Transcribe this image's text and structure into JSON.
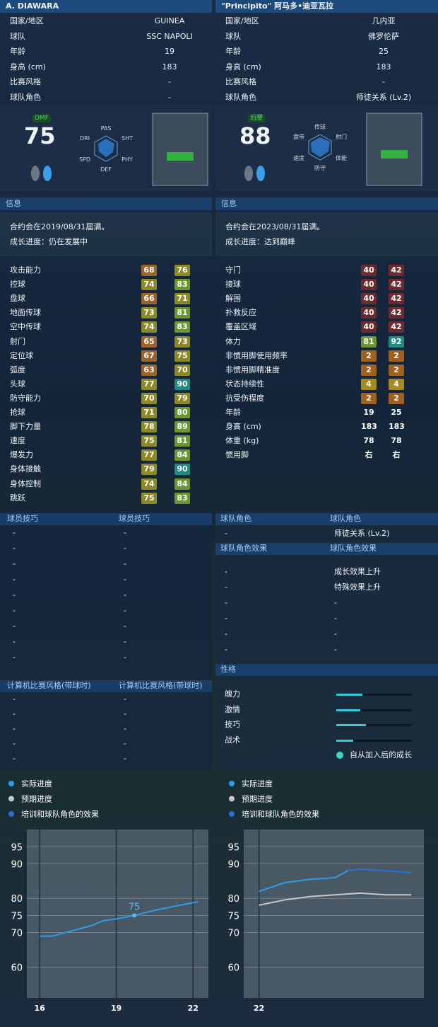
{
  "left": {
    "name": "A. DIAWARA",
    "profile": [
      {
        "label": "国家/地区",
        "value": "GUINEA"
      },
      {
        "label": "球队",
        "value": "SSC NAPOLI"
      },
      {
        "label": "年龄",
        "value": "19"
      },
      {
        "label": "身高 (cm)",
        "value": "183"
      },
      {
        "label": "比赛风格",
        "value": "-"
      },
      {
        "label": "球队角色",
        "value": "-"
      }
    ],
    "position": "DMF",
    "rating": 75,
    "radar_labels": [
      "PAS",
      "SHT",
      "PHY",
      "DEF",
      "SPD",
      "DRI"
    ],
    "info_title": "信息",
    "info": [
      "合约会在2019/08/31届满。",
      "成长进度：仍在发展中"
    ],
    "stats": [
      {
        "label": "攻击能力",
        "current": 68,
        "max": 76
      },
      {
        "label": "控球",
        "current": 74,
        "max": 83
      },
      {
        "label": "盘球",
        "current": 66,
        "max": 71
      },
      {
        "label": "地面传球",
        "current": 73,
        "max": 81
      },
      {
        "label": "空中传球",
        "current": 74,
        "max": 83
      },
      {
        "label": "射门",
        "current": 65,
        "max": 73
      },
      {
        "label": "定位球",
        "current": 67,
        "max": 75
      },
      {
        "label": "弧度",
        "current": 63,
        "max": 70
      },
      {
        "label": "头球",
        "current": 77,
        "max": 90
      },
      {
        "label": "防守能力",
        "current": 70,
        "max": 79
      },
      {
        "label": "抢球",
        "current": 71,
        "max": 80
      },
      {
        "label": "脚下力量",
        "current": 78,
        "max": 89
      },
      {
        "label": "速度",
        "current": 75,
        "max": 81
      },
      {
        "label": "爆发力",
        "current": 77,
        "max": 84
      },
      {
        "label": "身体接触",
        "current": 79,
        "max": 90
      },
      {
        "label": "身体控制",
        "current": 74,
        "max": 84
      },
      {
        "label": "跳跃",
        "current": 75,
        "max": 83
      }
    ]
  },
  "right": {
    "name": "\"Principito\" 阿马多•迪亚瓦拉",
    "profile": [
      {
        "label": "国家/地区",
        "value": "几内亚"
      },
      {
        "label": "球队",
        "value": "佛罗伦萨"
      },
      {
        "label": "年龄",
        "value": "25"
      },
      {
        "label": "身高 (cm)",
        "value": "183"
      },
      {
        "label": "比赛风格",
        "value": "-"
      },
      {
        "label": "球队角色",
        "value": "师徒关系 (Lv.2)"
      }
    ],
    "position": "后腰",
    "rating": 88,
    "radar_labels": [
      "传球",
      "射门",
      "体能",
      "防守",
      "速度",
      "盘带"
    ],
    "info_title": "信息",
    "info": [
      "合约会在2023/08/31届满。",
      "成长进度：达到巅峰"
    ],
    "stats": [
      {
        "label": "守门",
        "current": 40,
        "max": 42
      },
      {
        "label": "接球",
        "current": 40,
        "max": 42
      },
      {
        "label": "解围",
        "current": 40,
        "max": 42
      },
      {
        "label": "扑救反应",
        "current": 40,
        "max": 42
      },
      {
        "label": "覆盖区域",
        "current": 40,
        "max": 42
      },
      {
        "label": "体力",
        "current": 81,
        "max": 92
      },
      {
        "label": "非惯用脚使用频率",
        "current": 2,
        "max": 2
      },
      {
        "label": "非惯用脚精准度",
        "current": 2,
        "max": 2
      },
      {
        "label": "状态持续性",
        "current": 4,
        "max": 4
      },
      {
        "label": "抗受伤程度",
        "current": 2,
        "max": 2
      },
      {
        "label": "年龄",
        "current": 19,
        "max": 25
      },
      {
        "label": "身高 (cm)",
        "current": 183,
        "max": 183
      },
      {
        "label": "体重 (kg)",
        "current": 78,
        "max": 78
      },
      {
        "label": "惯用脚",
        "current": "右",
        "max": "右"
      }
    ]
  },
  "skills": {
    "headers": [
      "球员技巧",
      "球员技巧"
    ],
    "rows": [
      [
        "-",
        "-"
      ],
      [
        "-",
        "-"
      ],
      [
        "-",
        "-"
      ],
      [
        "-",
        "-"
      ],
      [
        "-",
        "-"
      ],
      [
        "-",
        "-"
      ],
      [
        "-",
        "-"
      ],
      [
        "-",
        "-"
      ],
      [
        "-",
        "-"
      ]
    ]
  },
  "ai_styles": {
    "headers": [
      "计算机比赛风格(带球时)",
      "计算机比赛风格(带球时)"
    ],
    "rows": [
      [
        "-",
        "-"
      ],
      [
        "-",
        "-"
      ],
      [
        "-",
        "-"
      ],
      [
        "-",
        "-"
      ],
      [
        "-",
        "-"
      ]
    ]
  },
  "team_role": {
    "headers": [
      "球队角色",
      "球队角色"
    ],
    "rows": [
      [
        "-",
        "师徒关系 (Lv.2)"
      ]
    ],
    "effect_headers": [
      "球队角色效果",
      "球队角色效果"
    ],
    "effect_rows": [
      [
        "-",
        "成长效果上升"
      ],
      [
        "-",
        "特殊效果上升"
      ],
      [
        "-",
        "-"
      ],
      [
        "-",
        "-"
      ],
      [
        "-",
        "-"
      ],
      [
        "-",
        "-"
      ]
    ]
  },
  "personality": {
    "title": "性格",
    "traits": [
      {
        "label": "魄力",
        "value": 35
      },
      {
        "label": "激情",
        "value": 32
      },
      {
        "label": "技巧",
        "value": 39
      },
      {
        "label": "战术",
        "value": 22
      }
    ],
    "legend": "自从加入后的成长"
  },
  "growth_charts": [
    {
      "type": "line",
      "xlim": [
        15.5,
        22.6
      ],
      "xticks": [
        16,
        19,
        22
      ],
      "ylim": [
        51,
        100
      ],
      "yticks": [
        95,
        90,
        80,
        75,
        70,
        60
      ],
      "series": [
        {
          "name": "实际进度",
          "color": "#2f9be8",
          "x": [
            16,
            16.5,
            17,
            17.5,
            18,
            18.5,
            19,
            19.7,
            20.5,
            21.5,
            22.2
          ],
          "values": [
            69,
            69,
            70,
            71,
            72,
            73.5,
            74,
            75,
            76.5,
            78,
            79
          ]
        },
        {
          "name": "预期进度",
          "color": "#c8c8c8",
          "x": [],
          "values": []
        },
        {
          "name": "培训和球队角色的效果",
          "color": "#2a6fd6",
          "x": [],
          "values": []
        }
      ],
      "point_label": {
        "x": 19.7,
        "value": 75
      }
    },
    {
      "type": "line",
      "xlim": [
        21.4,
        28.5
      ],
      "xticks": [
        22
      ],
      "ylim": [
        51,
        100
      ],
      "yticks": [
        95,
        90,
        80,
        75,
        70,
        60
      ],
      "series": [
        {
          "name": "实际进度",
          "color": "#2f9be8",
          "x": [
            22,
            23,
            24,
            25,
            25.5
          ],
          "values": [
            82,
            84.5,
            85.5,
            86,
            88
          ]
        },
        {
          "name": "预期进度",
          "color": "#c8c8c8",
          "x": [
            22,
            23,
            24,
            25,
            26,
            27,
            28
          ],
          "values": [
            78,
            79.5,
            80.5,
            81,
            81.5,
            81,
            81
          ]
        },
        {
          "name": "培训和球队角色的效果",
          "color": "#2a6fd6",
          "x": [
            25.5,
            26,
            27,
            28
          ],
          "values": [
            88,
            88.5,
            88,
            87.5
          ]
        }
      ]
    }
  ]
}
